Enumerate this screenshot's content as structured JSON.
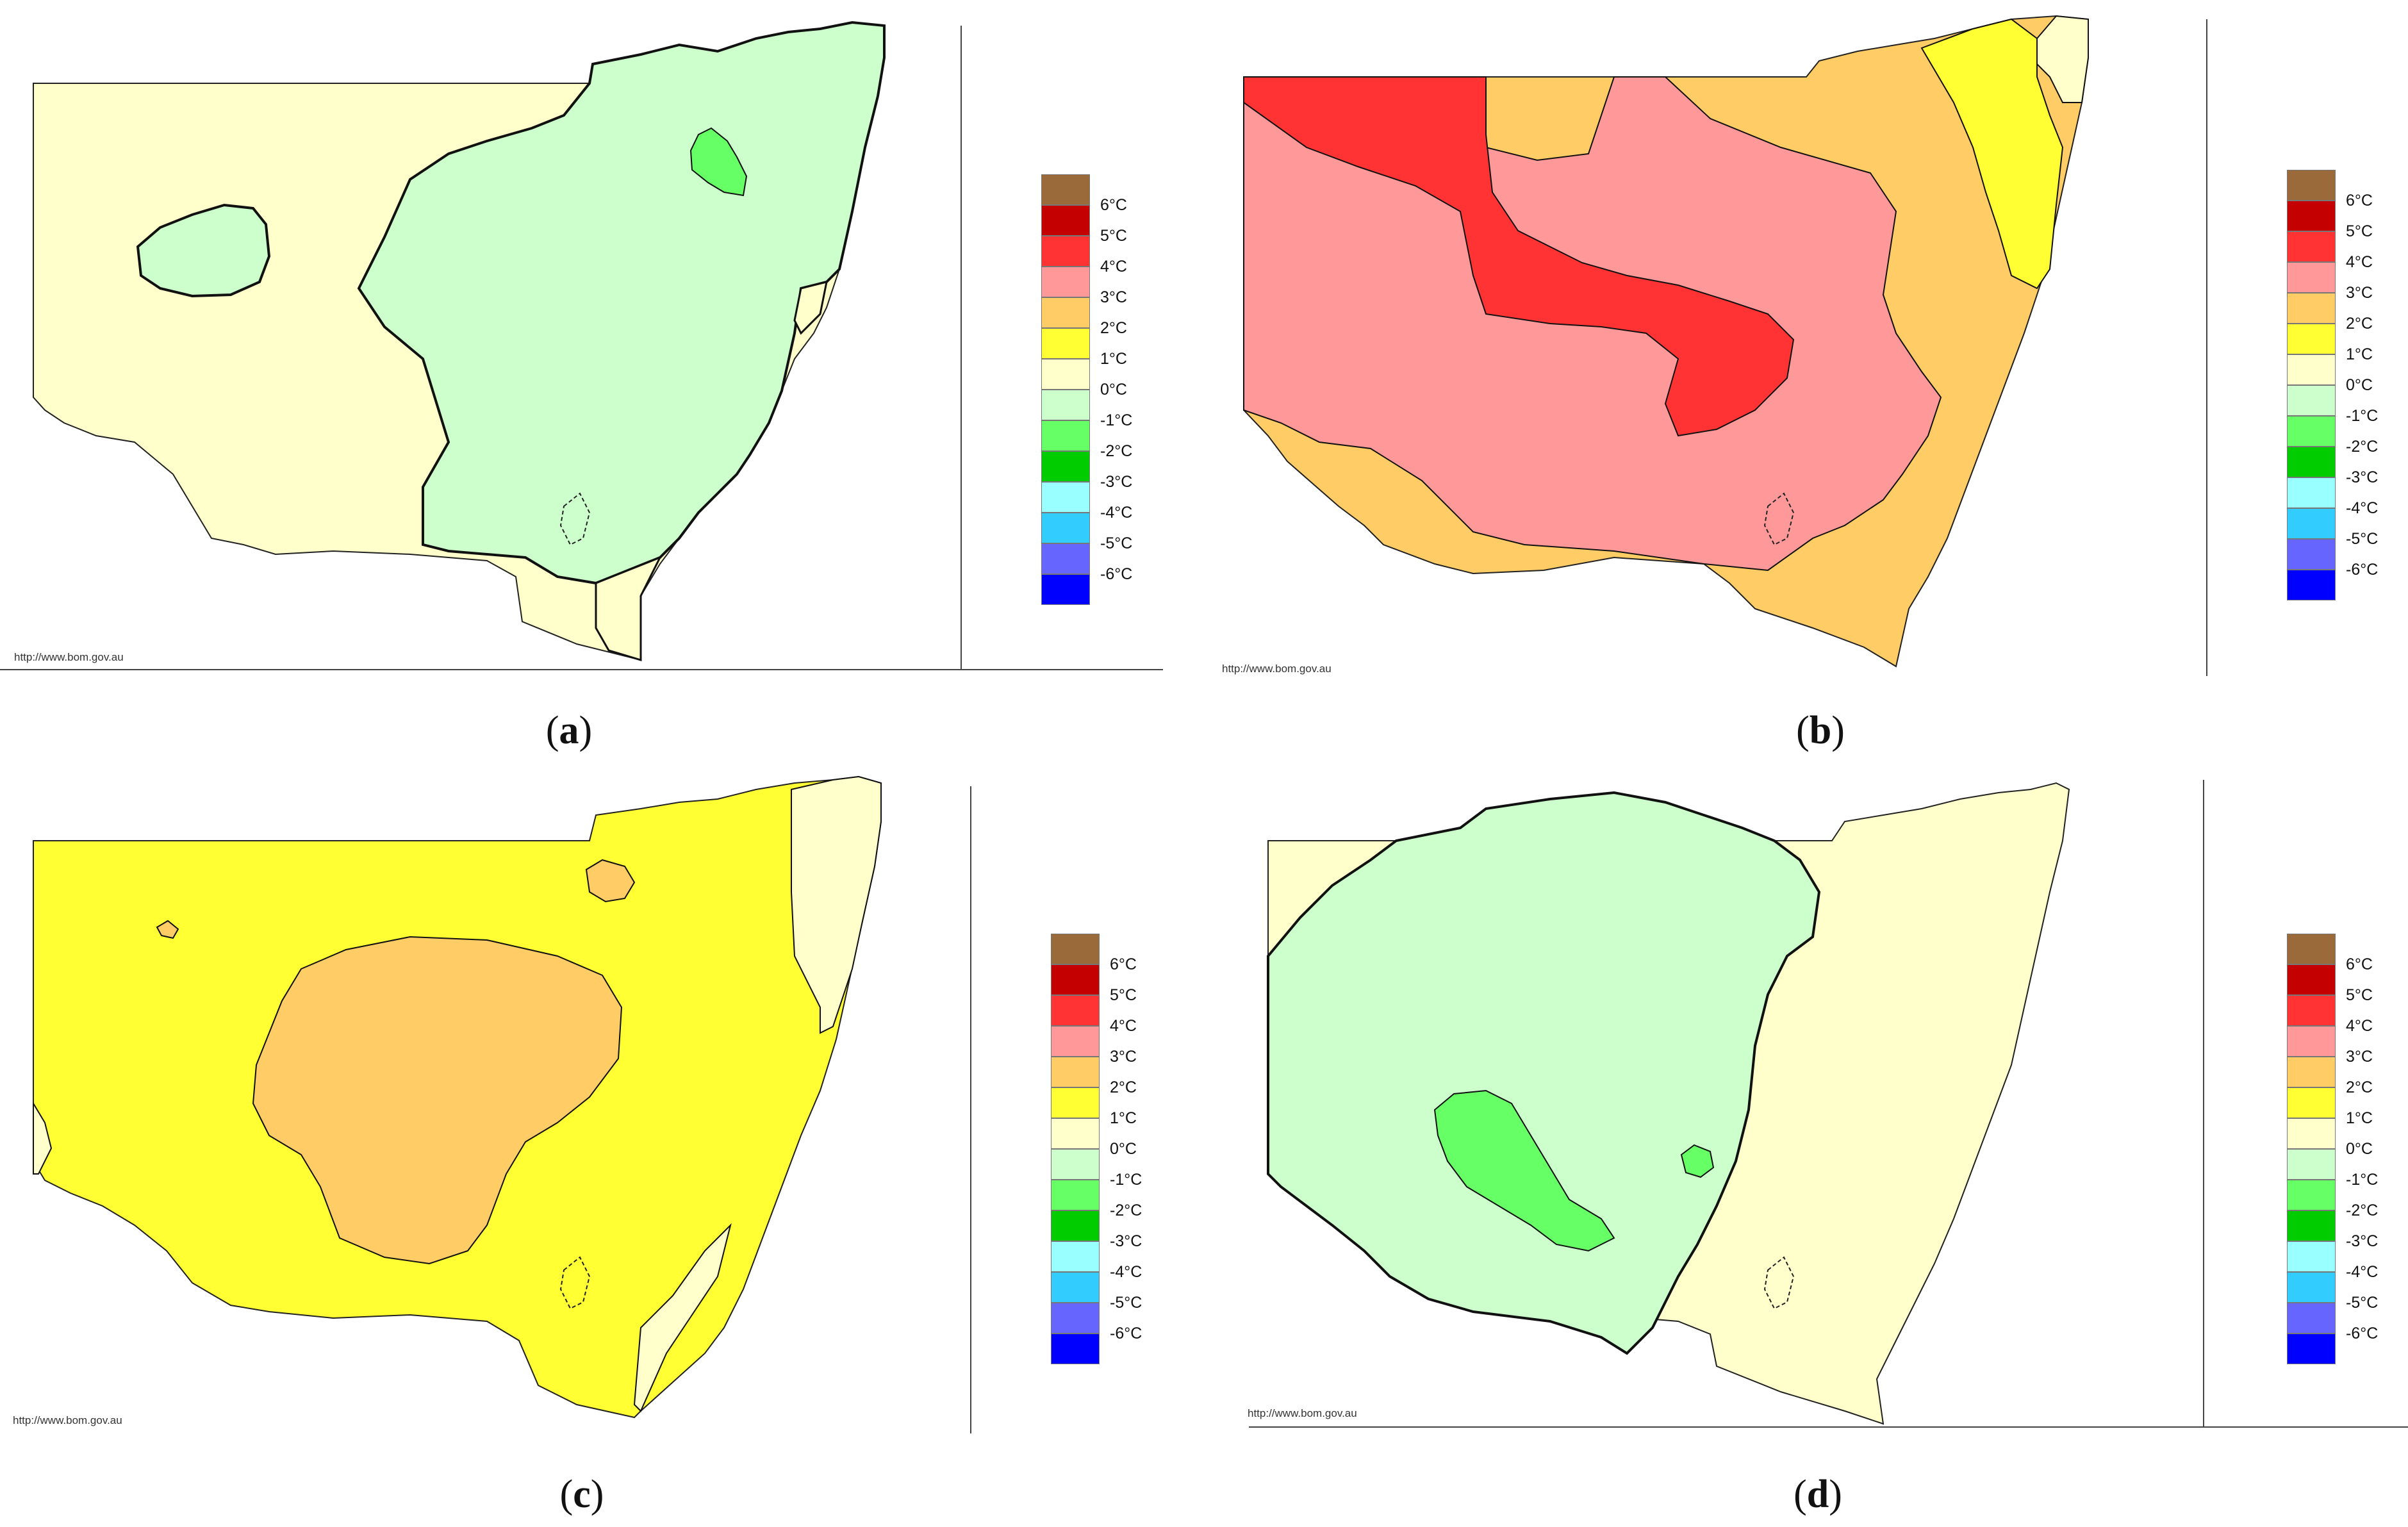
{
  "legend": {
    "colors": [
      "#9b6a3a",
      "#c40000",
      "#ff3333",
      "#ff9999",
      "#ffcc66",
      "#ffff33",
      "#ffffcc",
      "#ccffcc",
      "#66ff66",
      "#00cc00",
      "#99ffff",
      "#33ccff",
      "#6666ff",
      "#0000ff"
    ],
    "labels": [
      "6°C",
      "5°C",
      "4°C",
      "3°C",
      "2°C",
      "1°C",
      "0°C",
      "-1°C",
      "-2°C",
      "-3°C",
      "-4°C",
      "-5°C",
      "-6°C"
    ]
  },
  "palette": {
    "cream": "#ffffcc",
    "light_green": "#ccffcc",
    "green": "#66ff66",
    "yellow": "#ffff33",
    "orange": "#ffcc66",
    "pink": "#ff9999",
    "red": "#ff3333"
  },
  "source_url": "http://www.bom.gov.au",
  "panels": [
    {
      "id": "a",
      "caption_letter": "a"
    },
    {
      "id": "b",
      "caption_letter": "b"
    },
    {
      "id": "c",
      "caption_letter": "c"
    },
    {
      "id": "d",
      "caption_letter": "d"
    }
  ]
}
